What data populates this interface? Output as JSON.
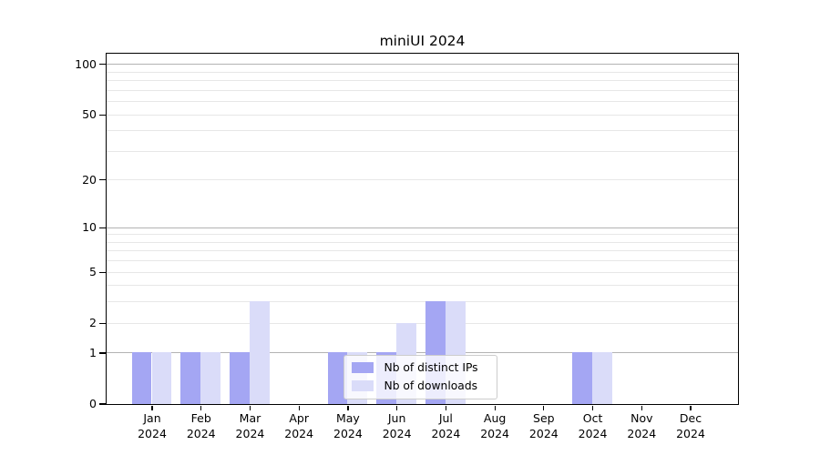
{
  "chart_data": {
    "type": "bar",
    "title": "miniUI 2024",
    "categories": [
      "Jan",
      "Feb",
      "Mar",
      "Apr",
      "May",
      "Jun",
      "Jul",
      "Aug",
      "Sep",
      "Oct",
      "Nov",
      "Dec"
    ],
    "x_year": "2024",
    "series": [
      {
        "name": "Nb of distinct IPs",
        "color": "#a4a6f3",
        "values": [
          1,
          1,
          1,
          0,
          1,
          1,
          3,
          0,
          0,
          1,
          0,
          0
        ]
      },
      {
        "name": "Nb of downloads",
        "color": "#dadcf9",
        "values": [
          1,
          1,
          3,
          0,
          1,
          2,
          3,
          0,
          0,
          1,
          0,
          0
        ]
      }
    ],
    "yscale": "log1p",
    "ylim": [
      0,
      116
    ],
    "yticks": [
      0,
      1,
      2,
      5,
      10,
      20,
      50,
      100
    ],
    "major_gridlines": [
      1,
      10,
      100
    ],
    "minor_gridlines": [
      2,
      3,
      4,
      5,
      6,
      7,
      8,
      9,
      20,
      30,
      40,
      50,
      60,
      70,
      80,
      90
    ],
    "grid": "on",
    "legend_position": "lower center",
    "colors": {
      "major_grid": "#b3b3b3",
      "minor_grid": "#e7e7e7",
      "axis": "#000000",
      "background": "#ffffff"
    }
  }
}
